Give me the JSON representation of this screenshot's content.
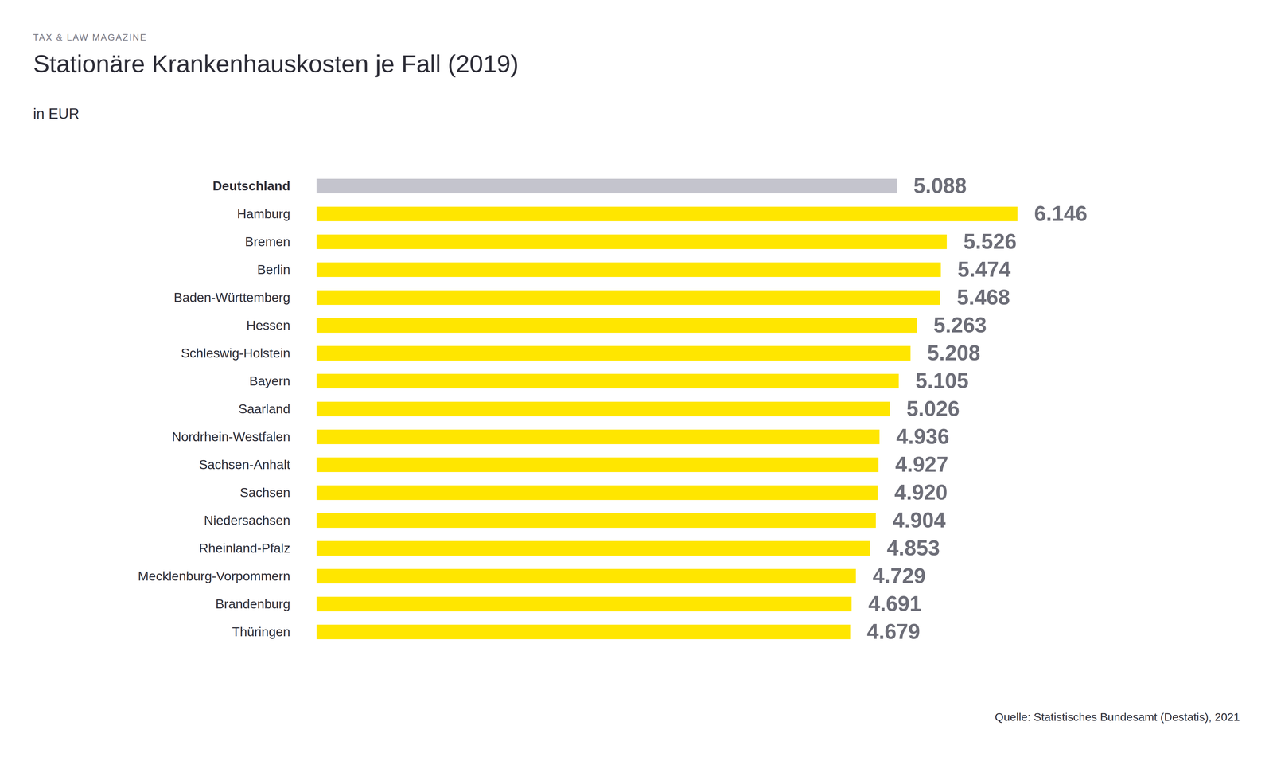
{
  "chart_data": {
    "type": "bar",
    "orientation": "horizontal",
    "kicker": "TAX & LAW MAGAZINE",
    "title": "Stationäre Krankenhauskosten je Fall (2019)",
    "subtitle": "in EUR",
    "source": "Quelle: Statistisches Bundesamt (Destatis), 2021",
    "categories": [
      "Deutschland",
      "Hamburg",
      "Bremen",
      "Berlin",
      "Baden-Württemberg",
      "Hessen",
      "Schleswig-Holstein",
      "Bayern",
      "Saarland",
      "Nordrhein-Westfalen",
      "Sachsen-Anhalt",
      "Sachsen",
      "Niedersachsen",
      "Rheinland-Pfalz",
      "Mecklenburg-Vorpommern",
      "Brandenburg",
      "Thüringen"
    ],
    "values": [
      5088,
      6146,
      5526,
      5474,
      5468,
      5263,
      5208,
      5105,
      5026,
      4936,
      4927,
      4920,
      4904,
      4853,
      4729,
      4691,
      4679
    ],
    "value_labels": [
      "5.088",
      "6.146",
      "5.526",
      "5.474",
      "5.468",
      "5.263",
      "5.208",
      "5.105",
      "5.026",
      "4.936",
      "4.927",
      "4.920",
      "4.904",
      "4.853",
      "4.729",
      "4.691",
      "4.679"
    ],
    "colors": [
      "#c4c4cd",
      "#ffe600",
      "#ffe600",
      "#ffe600",
      "#ffe600",
      "#ffe600",
      "#ffe600",
      "#ffe600",
      "#ffe600",
      "#ffe600",
      "#ffe600",
      "#ffe600",
      "#ffe600",
      "#ffe600",
      "#ffe600",
      "#ffe600",
      "#ffe600"
    ],
    "xlim": [
      0,
      7000
    ],
    "data_labels": true,
    "tick_labels": "y",
    "grid": false
  }
}
